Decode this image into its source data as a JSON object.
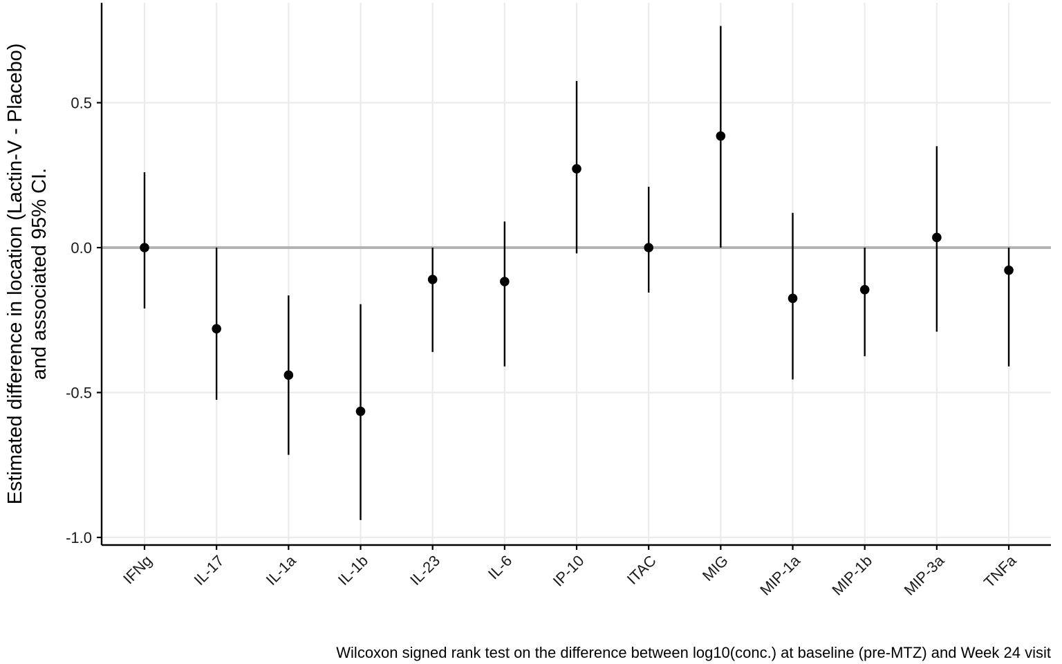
{
  "chart_data": {
    "type": "scatter",
    "subtype": "point-with-error-bars",
    "categories": [
      "IFNg",
      "IL-17",
      "IL-1a",
      "IL-1b",
      "IL-23",
      "IL-6",
      "IP-10",
      "ITAC",
      "MIG",
      "MIP-1a",
      "MIP-1b",
      "MIP-3a",
      "TNFa"
    ],
    "estimate": [
      0.0,
      -0.28,
      -0.44,
      -0.565,
      -0.11,
      -0.117,
      0.272,
      0.0,
      0.385,
      -0.175,
      -0.145,
      0.035,
      -0.078
    ],
    "ci_lower": [
      -0.21,
      -0.525,
      -0.715,
      -0.94,
      -0.36,
      -0.41,
      -0.02,
      -0.155,
      0.0,
      -0.455,
      -0.375,
      -0.29,
      -0.41
    ],
    "ci_upper": [
      0.26,
      0.0,
      -0.165,
      -0.195,
      0.0,
      0.09,
      0.575,
      0.21,
      0.765,
      0.12,
      0.0,
      0.35,
      0.0
    ],
    "ylabel_line1": "Estimated difference in location (Lactin-V - Placebo)",
    "ylabel_line2": "and associated 95% CI.",
    "xlabel": "",
    "caption": "Wilcoxon signed rank test on the difference between log10(conc.) at baseline (pre-MTZ) and Week 24 visit",
    "ylim": [
      -1.02,
      0.845
    ],
    "yticks": [
      -1.0,
      -0.5,
      0.0,
      0.5
    ],
    "ytick_labels": [
      "-1.0",
      "-0.5",
      "0.0",
      "0.5"
    ],
    "reference_line": 0.0,
    "grid": true,
    "legend": "none",
    "colors": {
      "point": "#000000",
      "errorbar": "#000000",
      "grid": "#ebebeb",
      "reference": "#b3b3b3",
      "axis": "#000000"
    }
  }
}
